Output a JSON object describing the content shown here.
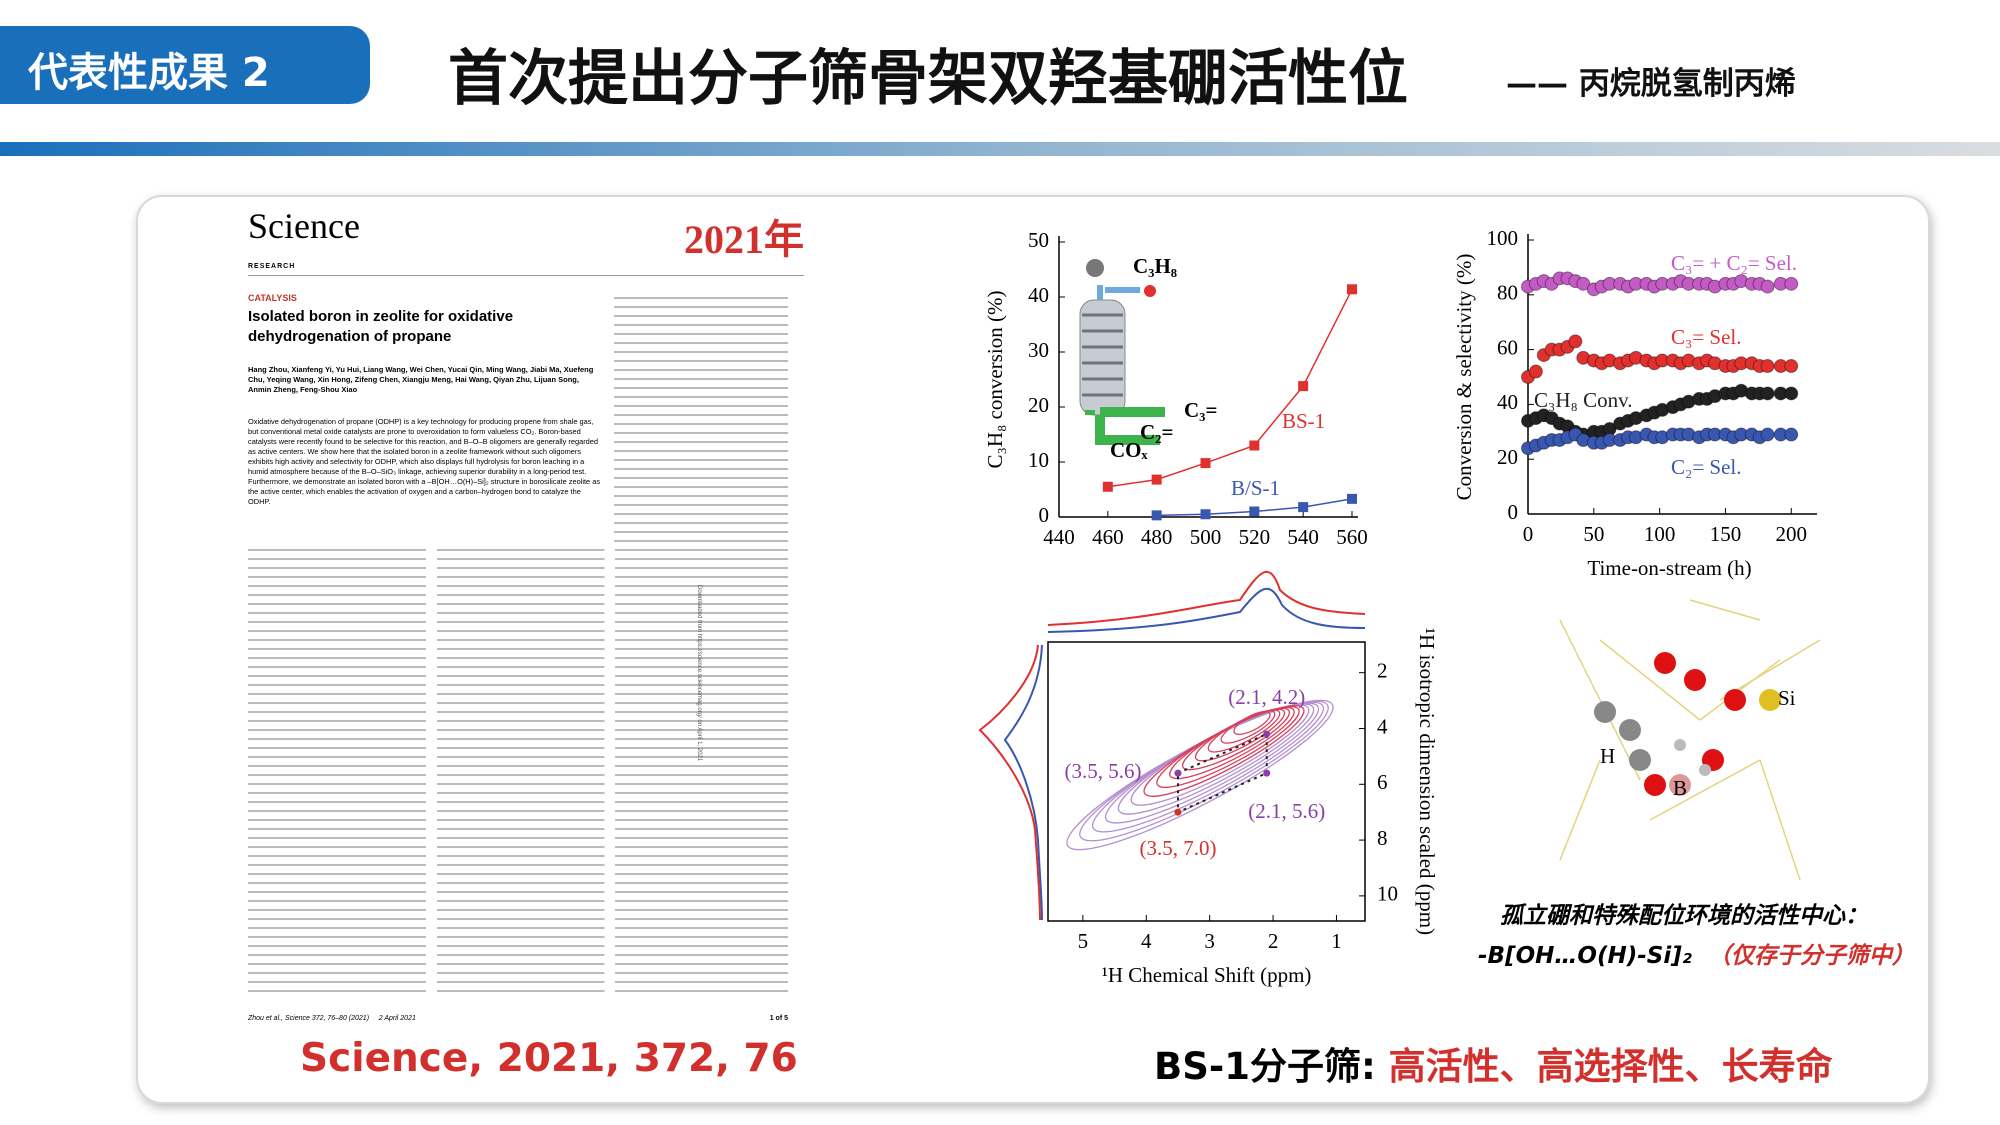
{
  "header": {
    "tag": "代表性成果 2",
    "title": "首次提出分子筛骨架双羟基硼活性位",
    "subtitle": "—— 丙烷脱氢制丙烯"
  },
  "paper": {
    "journal": "Science",
    "section": "RESEARCH",
    "year": "2021年",
    "category": "CATALYSIS",
    "title": "Isolated boron in zeolite for oxidative dehydrogenation of propane",
    "authors": "Hang Zhou, Xianfeng Yi, Yu Hui, Liang Wang, Wei Chen, Yucai Qin, Ming Wang, Jiabi Ma, Xuefeng Chu, Yeqing Wang, Xin Hong, Zifeng Chen, Xiangju Meng, Hai Wang, Qiyan Zhu, Lijuan Song, Anmin Zheng, Feng-Shou Xiao",
    "abstract": "Oxidative dehydrogenation of propane (ODHP) is a key technology for producing propene from shale gas, but conventional metal oxide catalysts are prone to overoxidation to form valueless CO₂. Boron-based catalysts were recently found to be selective for this reaction, and B–O–B oligomers are generally regarded as active centers. We show here that the isolated boron in a zeolite framework without such oligomers exhibits high activity and selectivity for ODHP, which also displays full hydrolysis for boron leaching in a humid atmosphere because of the B–O–SiO₃ linkage, achieving superior durability in a long-period test. Furthermore, we demonstrate an isolated boron with a –B[OH…O(H)–Si]₂ structure in borosilicate zeolite as the active center, which enables the activation of oxygen and a carbon–hydrogen bond to catalyze the ODHP.",
    "side_note": "Downloaded from https://science.sciencemag.org/ on April 1, 2021",
    "footer": "Zhou et al., Science 372, 76–80 (2021)     2 April 2021",
    "page": "1 of 5"
  },
  "chart_data": [
    {
      "type": "line",
      "y_label": "C₃H₈ conversion (%)",
      "xlim": [
        440,
        560
      ],
      "ylim": [
        0,
        50
      ],
      "xticks": [
        440,
        460,
        480,
        500,
        520,
        540,
        560
      ],
      "yticks": [
        0,
        10,
        20,
        30,
        40,
        50
      ],
      "series": [
        {
          "name": "BS-1",
          "color": "#e0312f",
          "x": [
            460,
            480,
            500,
            520,
            540,
            560
          ],
          "values": [
            5.5,
            6.8,
            9.8,
            13,
            23.8,
            41.4
          ]
        },
        {
          "name": "B/S-1",
          "color": "#3a57b0",
          "x": [
            480,
            500,
            520,
            540,
            560
          ],
          "values": [
            0.3,
            0.5,
            1,
            1.8,
            3.3
          ]
        }
      ],
      "annotations": [
        "C₃H₈",
        "C₃=",
        "C₂=",
        "COₓ"
      ]
    },
    {
      "type": "scatter",
      "x_label": "Time-on-stream (h)",
      "y_label": "Conversion & selectivity (%)",
      "xlim": [
        0,
        215
      ],
      "ylim": [
        0,
        100
      ],
      "xticks": [
        0,
        50,
        100,
        150,
        200
      ],
      "yticks": [
        0,
        20,
        40,
        60,
        80,
        100
      ],
      "x": [
        0,
        6,
        12,
        18,
        24,
        30,
        36,
        42,
        50,
        56,
        62,
        70,
        76,
        82,
        90,
        96,
        102,
        110,
        116,
        122,
        130,
        136,
        142,
        150,
        156,
        162,
        170,
        176,
        182,
        192,
        200
      ],
      "series": [
        {
          "name": "C₃= + C₂= Sel.",
          "color": "#c45bc4",
          "values": [
            83,
            84,
            85,
            84,
            86,
            86,
            85,
            84,
            82,
            83,
            84,
            84,
            83,
            84,
            84,
            83,
            84,
            84,
            85,
            84,
            84,
            84,
            83,
            84,
            84,
            85,
            84,
            84,
            83,
            84,
            84
          ]
        },
        {
          "name": "C₃= Sel.",
          "color": "#e0312f",
          "values": [
            50,
            52,
            58,
            60,
            60,
            61,
            63,
            57,
            56,
            55,
            56,
            55,
            56,
            57,
            56,
            55,
            56,
            56,
            55,
            56,
            55,
            56,
            55,
            54,
            54,
            55,
            55,
            54,
            54,
            54,
            54
          ]
        },
        {
          "name": "C₃H₈ Conv.",
          "color": "#222222",
          "values": [
            34,
            35,
            36,
            35,
            33,
            32,
            30,
            29,
            30,
            30,
            31,
            33,
            34,
            35,
            36,
            37,
            38,
            39,
            40,
            41,
            42,
            42,
            43,
            44,
            44,
            45,
            44,
            44,
            44,
            44,
            44
          ]
        },
        {
          "name": "C₂= Sel.",
          "color": "#3a57b0",
          "values": [
            24,
            25,
            26,
            27,
            27,
            28,
            29,
            27,
            26,
            26,
            27,
            27,
            28,
            28,
            29,
            28,
            28,
            29,
            29,
            29,
            28,
            29,
            29,
            29,
            28,
            29,
            29,
            28,
            29,
            29,
            29
          ]
        }
      ]
    },
    {
      "type": "contour",
      "x_label": "¹H Chemical Shift (ppm)",
      "y_label": "¹H isotropic dimension scaled (ppm)",
      "y_axis_side": "right",
      "xlim": [
        5.55,
        0.55
      ],
      "ylim": [
        10.9,
        0.9
      ],
      "xticks": [
        5,
        4,
        3,
        2,
        1
      ],
      "yticks": [
        2,
        4,
        6,
        8,
        10
      ],
      "x": [
        2.1,
        3.5,
        2.1,
        3.5
      ],
      "values": [
        4.2,
        5.6,
        5.6,
        7.0
      ],
      "value_labels": [
        "(2.1, 4.2)",
        "(3.5, 5.6)",
        "(2.1, 5.6)",
        "(3.5, 7.0)"
      ],
      "label_colors": [
        "#8a3fa8",
        "#8a3fa8",
        "#8a3fa8",
        "#d1302c"
      ]
    }
  ],
  "molecule": {
    "labels": [
      "Si",
      "H",
      "B"
    ]
  },
  "caption": {
    "line1": "孤立硼和特殊配位环境的活性中心：",
    "formula": "-B[OH…O(H)-Si]₂",
    "note": "（仅存于分子筛中）"
  },
  "citation": "Science, 2021, 372, 76",
  "conclusion": {
    "lead": "BS-1分子筛: ",
    "highlight": "高活性、高选择性、长寿命"
  }
}
